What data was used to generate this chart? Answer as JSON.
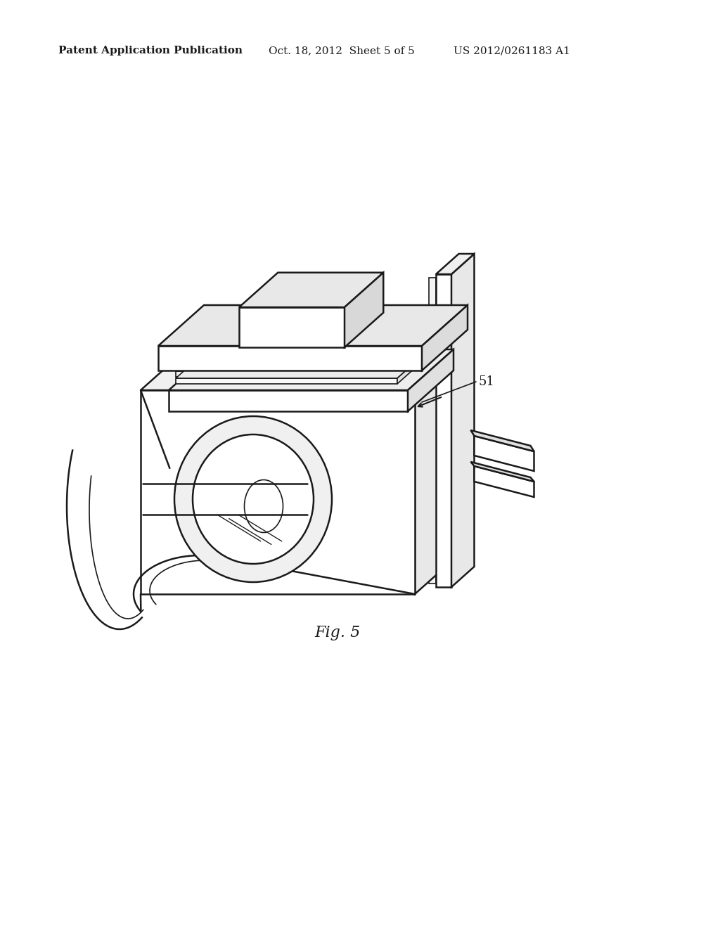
{
  "background_color": "#ffffff",
  "line_color": "#1a1a1a",
  "header_left": "Patent Application Publication",
  "header_center": "Oct. 18, 2012  Sheet 5 of 5",
  "header_right": "US 2012/0261183 A1",
  "fig_label": "Fig. 5",
  "annotation_label": "51",
  "header_fontsize": 11,
  "fig_label_fontsize": 16,
  "annotation_fontsize": 13
}
